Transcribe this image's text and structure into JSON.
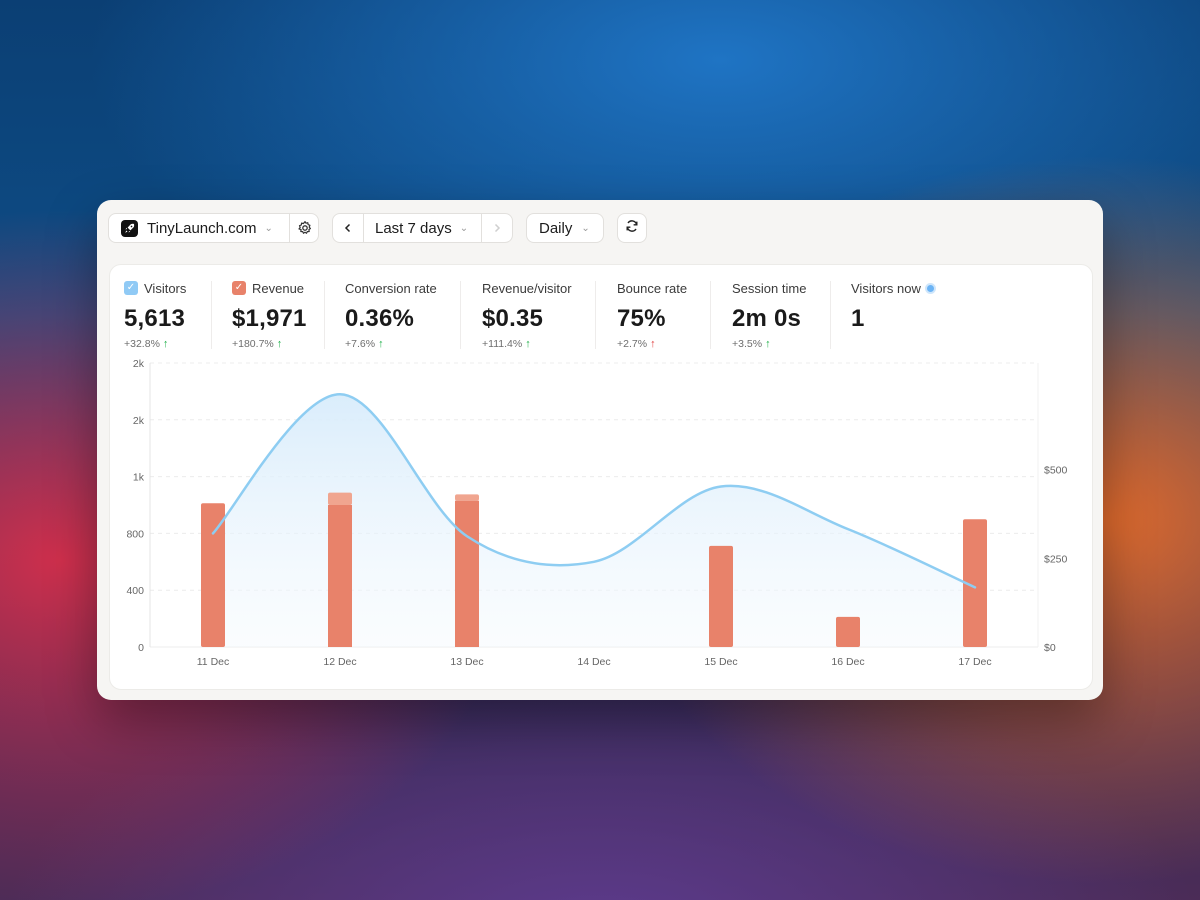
{
  "toolbar": {
    "site_name": "TinyLaunch.com",
    "site_icon": "rocket-icon",
    "range_label": "Last 7 days",
    "granularity_label": "Daily"
  },
  "metrics": [
    {
      "label": "Visitors",
      "value": "5,613",
      "change": "+32.8%",
      "direction": "up",
      "checkbox": true,
      "checkbox_color": "#90caf5"
    },
    {
      "label": "Revenue",
      "value": "$1,971",
      "change": "+180.7%",
      "direction": "up",
      "checkbox": true,
      "checkbox_color": "#e8826a"
    },
    {
      "label": "Conversion rate",
      "value": "0.36%",
      "change": "+7.6%",
      "direction": "up"
    },
    {
      "label": "Revenue/visitor",
      "value": "$0.35",
      "change": "+111.4%",
      "direction": "up"
    },
    {
      "label": "Bounce rate",
      "value": "75%",
      "change": "+2.7%",
      "direction": "down"
    },
    {
      "label": "Session time",
      "value": "2m 0s",
      "change": "+3.5%",
      "direction": "up"
    },
    {
      "label": "Visitors now",
      "value": "1",
      "live": true
    }
  ],
  "colors": {
    "visitors_line": "#8ecdf2",
    "revenue_bar": "#e8826a",
    "revenue_bar_light": "#f0a58f",
    "up": "#22b14c",
    "down": "#e14040"
  },
  "chart_data": {
    "type": "bar+line",
    "categories": [
      "11 Dec",
      "12 Dec",
      "13 Dec",
      "14 Dec",
      "15 Dec",
      "16 Dec",
      "17 Dec"
    ],
    "left_axis_ticks": [
      "0",
      "400",
      "800",
      "1k",
      "2k",
      "2k"
    ],
    "right_axis_ticks": [
      "$0",
      "$250",
      "$500"
    ],
    "series": [
      {
        "name": "Visitors",
        "type": "area-line",
        "axis": "left",
        "values": [
          800,
          1780,
          780,
          600,
          1130,
          830,
          420
        ]
      },
      {
        "name": "Revenue",
        "type": "bar",
        "axis": "right",
        "values": [
          405,
          400,
          412,
          0,
          285,
          85,
          360
        ],
        "stacked_top": [
          0,
          35,
          18,
          0,
          0,
          0,
          0
        ]
      }
    ],
    "left_ylim": [
      0,
      2000
    ],
    "right_ylim": [
      0,
      800
    ],
    "grid": true
  }
}
